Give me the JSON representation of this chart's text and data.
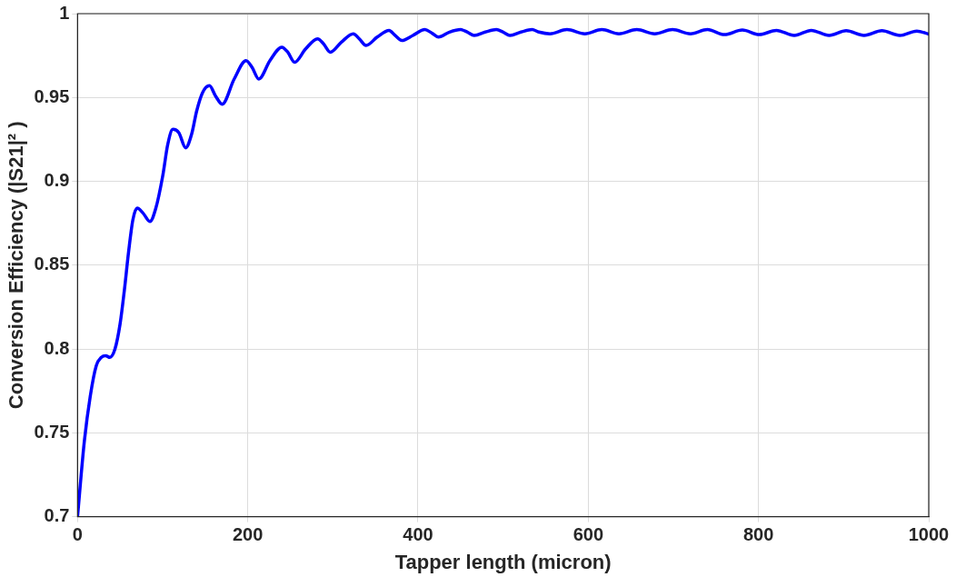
{
  "chart_data": {
    "type": "line",
    "xlabel": "Tapper length (micron)",
    "ylabel": "Conversion Efficiency (|S21|² )",
    "xlim": [
      0,
      1000
    ],
    "ylim": [
      0.7,
      1
    ],
    "xticks": [
      0,
      200,
      400,
      600,
      800,
      1000
    ],
    "yticks": [
      0.7,
      0.75,
      0.8,
      0.85,
      0.9,
      0.95,
      1
    ],
    "grid": true,
    "marker": "none",
    "line_style": "solid",
    "series": [
      {
        "color": "#0000ff",
        "x": [
          0,
          8,
          15,
          22,
          28,
          33,
          38,
          44,
          50,
          55,
          60,
          65,
          70,
          77,
          85,
          92,
          100,
          106,
          112,
          119,
          127,
          134,
          140,
          147,
          155,
          162,
          170,
          184,
          198,
          205,
          213,
          226,
          240,
          247,
          255,
          268,
          282,
          289,
          297,
          310,
          324,
          331,
          339,
          352,
          366,
          373,
          381,
          394,
          408,
          416,
          424,
          437,
          450,
          458,
          466,
          479,
          492,
          500,
          508,
          521,
          534,
          542,
          555,
          575,
          596,
          616,
          636,
          657,
          678,
          699,
          720,
          740,
          760,
          781,
          801,
          821,
          842,
          862,
          883,
          903,
          924,
          945,
          966,
          986,
          1000
        ],
        "values": [
          0.7,
          0.745,
          0.772,
          0.79,
          0.795,
          0.796,
          0.795,
          0.8,
          0.815,
          0.835,
          0.858,
          0.877,
          0.884,
          0.881,
          0.876,
          0.884,
          0.903,
          0.922,
          0.931,
          0.929,
          0.92,
          0.928,
          0.942,
          0.953,
          0.957,
          0.951,
          0.946,
          0.961,
          0.972,
          0.968,
          0.961,
          0.972,
          0.98,
          0.977,
          0.971,
          0.979,
          0.985,
          0.982,
          0.977,
          0.983,
          0.988,
          0.985,
          0.981,
          0.986,
          0.99,
          0.987,
          0.984,
          0.987,
          0.9905,
          0.9885,
          0.986,
          0.989,
          0.9905,
          0.989,
          0.987,
          0.989,
          0.9905,
          0.989,
          0.987,
          0.989,
          0.9905,
          0.989,
          0.988,
          0.9905,
          0.988,
          0.9905,
          0.988,
          0.9905,
          0.988,
          0.9905,
          0.988,
          0.9905,
          0.9875,
          0.9902,
          0.9875,
          0.99,
          0.987,
          0.99,
          0.987,
          0.9898,
          0.987,
          0.9898,
          0.987,
          0.9896,
          0.9878
        ]
      }
    ]
  }
}
